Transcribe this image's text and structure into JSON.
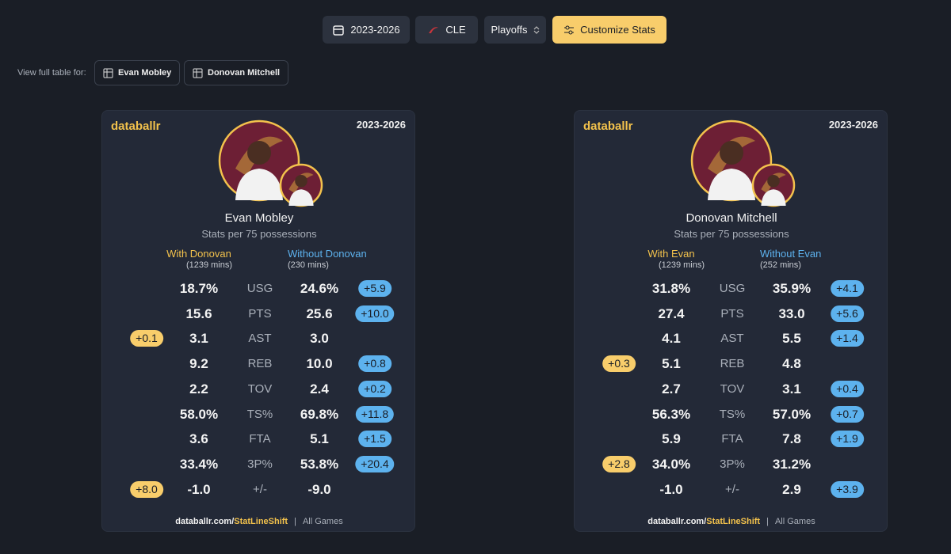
{
  "toolbar": {
    "season": "2023-2026",
    "team": "CLE",
    "phase": "Playoffs",
    "customize": "Customize Stats"
  },
  "view_full": {
    "label": "View full table for:",
    "players": [
      "Evan Mobley",
      "Donovan Mitchell"
    ]
  },
  "cards": [
    {
      "brand": "databallr",
      "season": "2023-2026",
      "player": "Evan Mobley",
      "subtitle": "Stats per 75 possessions",
      "with": {
        "label": "With Donovan",
        "mins": "(1239 mins)"
      },
      "without": {
        "label": "Without Donovan",
        "mins": "(230 mins)"
      },
      "rows": [
        {
          "with": "18.7%",
          "stat": "USG",
          "without": "24.6%",
          "right": "+5.9"
        },
        {
          "with": "15.6",
          "stat": "PTS",
          "without": "25.6",
          "right": "+10.0"
        },
        {
          "left": "+0.1",
          "with": "3.1",
          "stat": "AST",
          "without": "3.0"
        },
        {
          "with": "9.2",
          "stat": "REB",
          "without": "10.0",
          "right": "+0.8"
        },
        {
          "with": "2.2",
          "stat": "TOV",
          "without": "2.4",
          "right": "+0.2"
        },
        {
          "with": "58.0%",
          "stat": "TS%",
          "without": "69.8%",
          "right": "+11.8"
        },
        {
          "with": "3.6",
          "stat": "FTA",
          "without": "5.1",
          "right": "+1.5"
        },
        {
          "with": "33.4%",
          "stat": "3P%",
          "without": "53.8%",
          "right": "+20.4"
        },
        {
          "left": "+8.0",
          "with": "-1.0",
          "stat": "+/-",
          "without": "-9.0"
        }
      ],
      "footer": {
        "site": "databallr.com/",
        "link": "StatLineShift",
        "sep": "|",
        "scope": "All Games"
      }
    },
    {
      "brand": "databallr",
      "season": "2023-2026",
      "player": "Donovan Mitchell",
      "subtitle": "Stats per 75 possessions",
      "with": {
        "label": "With Evan",
        "mins": "(1239 mins)"
      },
      "without": {
        "label": "Without Evan",
        "mins": "(252 mins)"
      },
      "rows": [
        {
          "with": "31.8%",
          "stat": "USG",
          "without": "35.9%",
          "right": "+4.1"
        },
        {
          "with": "27.4",
          "stat": "PTS",
          "without": "33.0",
          "right": "+5.6"
        },
        {
          "with": "4.1",
          "stat": "AST",
          "without": "5.5",
          "right": "+1.4"
        },
        {
          "left": "+0.3",
          "with": "5.1",
          "stat": "REB",
          "without": "4.8"
        },
        {
          "with": "2.7",
          "stat": "TOV",
          "without": "3.1",
          "right": "+0.4"
        },
        {
          "with": "56.3%",
          "stat": "TS%",
          "without": "57.0%",
          "right": "+0.7"
        },
        {
          "with": "5.9",
          "stat": "FTA",
          "without": "7.8",
          "right": "+1.9"
        },
        {
          "left": "+2.8",
          "with": "34.0%",
          "stat": "3P%",
          "without": "31.2%"
        },
        {
          "with": "-1.0",
          "stat": "+/-",
          "without": "2.9",
          "right": "+3.9"
        }
      ],
      "footer": {
        "site": "databallr.com/",
        "link": "StatLineShift",
        "sep": "|",
        "scope": "All Games"
      }
    }
  ]
}
